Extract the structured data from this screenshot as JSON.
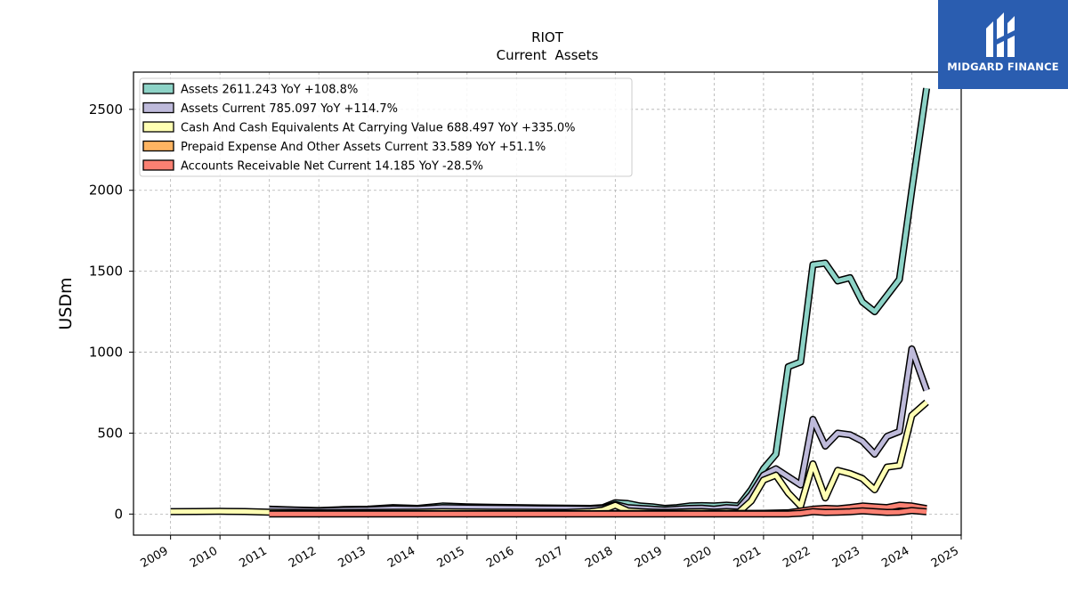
{
  "chart_data": {
    "type": "line",
    "title": "RIOT",
    "subtitle": "Current  Assets",
    "ylabel": "USDm",
    "xlabel": "",
    "xlim": [
      2008.25,
      2025.0
    ],
    "ylim": [
      -130,
      2730
    ],
    "x_ticks": [
      "2009",
      "2010",
      "2011",
      "2012",
      "2013",
      "2014",
      "2015",
      "2016",
      "2017",
      "2018",
      "2019",
      "2020",
      "2021",
      "2022",
      "2023",
      "2024",
      "2025"
    ],
    "y_ticks": [
      "0",
      "500",
      "1000",
      "1500",
      "2000",
      "2500"
    ],
    "grid": true,
    "legend_position": "top-left",
    "series": [
      {
        "name": "Assets  2611.243 YoY +108.8%",
        "color": "#8dd3c7",
        "x": [
          2011.0,
          2011.5,
          2012.0,
          2012.5,
          2013.0,
          2013.5,
          2014.0,
          2014.5,
          2015.0,
          2015.5,
          2016.0,
          2016.5,
          2017.0,
          2017.5,
          2017.75,
          2018.0,
          2018.25,
          2018.5,
          2018.75,
          2019.0,
          2019.25,
          2019.5,
          2019.75,
          2020.0,
          2020.25,
          2020.5,
          2020.75,
          2021.0,
          2021.25,
          2021.5,
          2021.75,
          2022.0,
          2022.25,
          2022.5,
          2022.75,
          2023.0,
          2023.25,
          2023.5,
          2023.75,
          2024.0,
          2024.3
        ],
        "y": [
          30,
          25,
          22,
          28,
          30,
          40,
          35,
          50,
          45,
          42,
          40,
          38,
          36,
          35,
          40,
          70,
          65,
          50,
          45,
          35,
          40,
          50,
          52,
          50,
          55,
          50,
          150,
          280,
          370,
          910,
          940,
          1540,
          1550,
          1440,
          1460,
          1310,
          1250,
          1350,
          1450,
          2000,
          2630
        ]
      },
      {
        "name": "Assets Current  785.097 YoY +114.7%",
        "color": "#bebada",
        "x": [
          2011.0,
          2011.5,
          2012.0,
          2012.5,
          2013.0,
          2013.5,
          2014.0,
          2014.5,
          2015.0,
          2015.5,
          2016.0,
          2016.5,
          2017.0,
          2017.5,
          2017.75,
          2018.0,
          2018.25,
          2018.5,
          2018.75,
          2019.0,
          2019.25,
          2019.5,
          2019.75,
          2020.0,
          2020.25,
          2020.5,
          2020.75,
          2021.0,
          2021.25,
          2021.5,
          2021.75,
          2022.0,
          2022.25,
          2022.5,
          2022.75,
          2023.0,
          2023.25,
          2023.5,
          2023.75,
          2024.0,
          2024.3
        ],
        "y": [
          28,
          24,
          20,
          24,
          26,
          32,
          30,
          40,
          38,
          36,
          35,
          33,
          32,
          30,
          35,
          60,
          40,
          35,
          30,
          25,
          30,
          35,
          36,
          30,
          40,
          35,
          120,
          240,
          280,
          230,
          180,
          585,
          420,
          500,
          490,
          450,
          370,
          480,
          510,
          1020,
          765
        ]
      },
      {
        "name": "Cash And Cash Equivalents At Carrying Value  688.497 YoY +335.0%",
        "color": "#ffffb3",
        "x": [
          2009.0,
          2009.5,
          2010.0,
          2010.5,
          2011.0,
          2011.5,
          2012.0,
          2012.5,
          2013.0,
          2013.5,
          2014.0,
          2014.5,
          2015.0,
          2015.5,
          2016.0,
          2016.5,
          2017.0,
          2017.5,
          2017.75,
          2018.0,
          2018.25,
          2018.5,
          2018.75,
          2019.0,
          2019.25,
          2019.5,
          2019.75,
          2020.0,
          2020.25,
          2020.5,
          2020.75,
          2021.0,
          2021.25,
          2021.5,
          2021.75,
          2022.0,
          2022.25,
          2022.5,
          2022.75,
          2023.0,
          2023.25,
          2023.5,
          2023.75,
          2024.0,
          2024.3
        ],
        "y": [
          15,
          16,
          17,
          16,
          12,
          10,
          9,
          9,
          10,
          11,
          12,
          14,
          13,
          12,
          12,
          11,
          10,
          15,
          25,
          55,
          20,
          15,
          12,
          10,
          12,
          14,
          15,
          12,
          15,
          12,
          80,
          210,
          240,
          130,
          50,
          310,
          100,
          270,
          250,
          220,
          150,
          290,
          300,
          610,
          690
        ]
      },
      {
        "name": "Prepaid Expense And Other Assets Current  33.589 YoY +51.1%",
        "color": "#fb8072",
        "x": [
          2011.0,
          2011.5,
          2012.0,
          2012.5,
          2013.0,
          2013.5,
          2014.0,
          2014.5,
          2015.0,
          2015.5,
          2016.0,
          2016.5,
          2017.0,
          2017.5,
          2018.0,
          2018.5,
          2019.0,
          2019.5,
          2020.0,
          2020.5,
          2021.0,
          2021.5,
          2022.0,
          2022.25,
          2022.5,
          2022.75,
          2023.0,
          2023.25,
          2023.5,
          2023.75,
          2024.0,
          2024.3
        ],
        "y": [
          2,
          2,
          2,
          2,
          2,
          2,
          2,
          2,
          2,
          2,
          2,
          2,
          2,
          2,
          3,
          3,
          3,
          3,
          3,
          4,
          5,
          8,
          30,
          35,
          32,
          40,
          50,
          45,
          40,
          55,
          50,
          34
        ],
        "fill_color": "#fdb462"
      },
      {
        "name": "Accounts Receivable Net Current  14.185 YoY -28.5%",
        "color": "#fb8072",
        "x": [
          2011.0,
          2011.5,
          2012.0,
          2012.5,
          2013.0,
          2013.5,
          2014.0,
          2014.5,
          2015.0,
          2015.5,
          2016.0,
          2016.5,
          2017.0,
          2017.5,
          2018.0,
          2018.5,
          2019.0,
          2019.5,
          2020.0,
          2020.5,
          2021.0,
          2021.5,
          2021.75,
          2022.0,
          2022.25,
          2022.5,
          2022.75,
          2023.0,
          2023.25,
          2023.5,
          2023.75,
          2024.0,
          2024.3
        ],
        "y": [
          1,
          1,
          1,
          1,
          1,
          1,
          1,
          1,
          1,
          1,
          1,
          1,
          1,
          1,
          1,
          1,
          1,
          1,
          1,
          1,
          1,
          1,
          5,
          15,
          10,
          12,
          14,
          20,
          15,
          10,
          12,
          22,
          14
        ]
      }
    ],
    "legend_entries": [
      {
        "label": "Assets  2611.243 YoY +108.8%",
        "color": "#8dd3c7"
      },
      {
        "label": "Assets Current  785.097 YoY +114.7%",
        "color": "#bebada"
      },
      {
        "label": "Cash And Cash Equivalents At Carrying Value  688.497 YoY +335.0%",
        "color": "#ffffb3"
      },
      {
        "label": "Prepaid Expense And Other Assets Current  33.589 YoY +51.1%",
        "color": "#fdb462"
      },
      {
        "label": "Accounts Receivable Net Current  14.185 YoY -28.5%",
        "color": "#fb8072"
      }
    ]
  },
  "branding": {
    "logo_text": "MIDGARD FINANCE",
    "logo_color": "#2a5db0"
  }
}
